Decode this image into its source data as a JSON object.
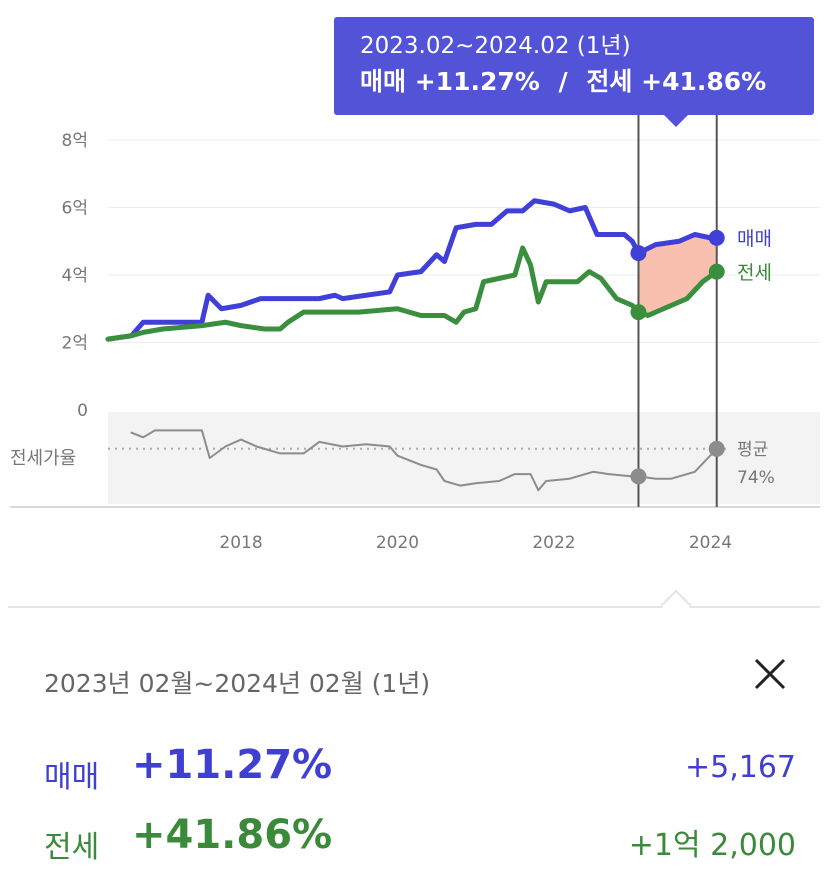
{
  "colors": {
    "sale": "#4040d8",
    "jeonse": "#3a8f3e",
    "ratio": "#8c8c8c",
    "highlight_fill": "#f9b9a6",
    "tooltip_bg": "#5353d8"
  },
  "tooltip": {
    "period": "2023.02~2024.02 (1년)",
    "sale_label": "매매",
    "sale_pct": "+11.27%",
    "separator": "/",
    "jeonse_label": "전세",
    "jeonse_pct": "+41.86%"
  },
  "panel": {
    "period": "2023년 02월~2024년 02월 (1년)",
    "close_icon": "close-icon",
    "sale": {
      "label": "매매",
      "pct": "+11.27%",
      "amount": "+5,167"
    },
    "jeonse": {
      "label": "전세",
      "pct": "+41.86%",
      "amount": "+1억 2,000"
    }
  },
  "chart_data": {
    "type": "line",
    "y_ticks": [
      "8억",
      "6억",
      "4억",
      "2억",
      "0"
    ],
    "ylim": [
      0,
      8
    ],
    "xlim": [
      2016.3,
      2025.4
    ],
    "x_ticks": [
      "2018",
      "2020",
      "2022",
      "2024"
    ],
    "x_tick_values": [
      2018,
      2020,
      2022,
      2024
    ],
    "ratio_label": "전세가율",
    "ratio_avg_label": "평균",
    "ratio_avg_value": "74%",
    "highlight_range": [
      2023.08,
      2024.08
    ],
    "series": [
      {
        "name": "매매",
        "key": "sale",
        "points": [
          [
            2016.3,
            2.1
          ],
          [
            2016.6,
            2.2
          ],
          [
            2016.75,
            2.6
          ],
          [
            2017.0,
            2.6
          ],
          [
            2017.5,
            2.6
          ],
          [
            2017.58,
            3.4
          ],
          [
            2017.75,
            3.0
          ],
          [
            2018.0,
            3.1
          ],
          [
            2018.25,
            3.3
          ],
          [
            2018.5,
            3.3
          ],
          [
            2019.0,
            3.3
          ],
          [
            2019.2,
            3.4
          ],
          [
            2019.3,
            3.3
          ],
          [
            2019.6,
            3.4
          ],
          [
            2019.9,
            3.5
          ],
          [
            2020.0,
            4.0
          ],
          [
            2020.3,
            4.1
          ],
          [
            2020.5,
            4.6
          ],
          [
            2020.6,
            4.4
          ],
          [
            2020.75,
            5.4
          ],
          [
            2021.0,
            5.5
          ],
          [
            2021.2,
            5.5
          ],
          [
            2021.4,
            5.9
          ],
          [
            2021.6,
            5.9
          ],
          [
            2021.75,
            6.2
          ],
          [
            2022.0,
            6.1
          ],
          [
            2022.2,
            5.9
          ],
          [
            2022.4,
            6.0
          ],
          [
            2022.55,
            5.2
          ],
          [
            2022.9,
            5.2
          ],
          [
            2023.0,
            5.0
          ],
          [
            2023.08,
            4.65
          ],
          [
            2023.3,
            4.9
          ],
          [
            2023.6,
            5.0
          ],
          [
            2023.8,
            5.2
          ],
          [
            2024.0,
            5.1
          ],
          [
            2024.08,
            5.1
          ]
        ]
      },
      {
        "name": "전세",
        "key": "jeonse",
        "points": [
          [
            2016.3,
            2.1
          ],
          [
            2016.6,
            2.2
          ],
          [
            2016.75,
            2.3
          ],
          [
            2017.0,
            2.4
          ],
          [
            2017.5,
            2.5
          ],
          [
            2017.8,
            2.6
          ],
          [
            2018.0,
            2.5
          ],
          [
            2018.3,
            2.4
          ],
          [
            2018.5,
            2.4
          ],
          [
            2018.6,
            2.6
          ],
          [
            2018.8,
            2.9
          ],
          [
            2019.0,
            2.9
          ],
          [
            2019.5,
            2.9
          ],
          [
            2020.0,
            3.0
          ],
          [
            2020.3,
            2.8
          ],
          [
            2020.6,
            2.8
          ],
          [
            2020.75,
            2.6
          ],
          [
            2020.85,
            2.9
          ],
          [
            2021.0,
            3.0
          ],
          [
            2021.1,
            3.8
          ],
          [
            2021.3,
            3.9
          ],
          [
            2021.5,
            4.0
          ],
          [
            2021.6,
            4.8
          ],
          [
            2021.7,
            4.3
          ],
          [
            2021.8,
            3.2
          ],
          [
            2021.9,
            3.8
          ],
          [
            2022.0,
            3.8
          ],
          [
            2022.3,
            3.8
          ],
          [
            2022.45,
            4.1
          ],
          [
            2022.6,
            3.9
          ],
          [
            2022.8,
            3.3
          ],
          [
            2023.0,
            3.1
          ],
          [
            2023.08,
            2.9
          ],
          [
            2023.2,
            2.8
          ],
          [
            2023.5,
            3.1
          ],
          [
            2023.7,
            3.3
          ],
          [
            2023.9,
            3.8
          ],
          [
            2024.08,
            4.1
          ]
        ]
      },
      {
        "name": "전세가율",
        "key": "ratio",
        "points": [
          [
            2016.6,
            81
          ],
          [
            2016.75,
            79
          ],
          [
            2016.9,
            82
          ],
          [
            2017.2,
            82
          ],
          [
            2017.5,
            82
          ],
          [
            2017.6,
            70
          ],
          [
            2017.8,
            75
          ],
          [
            2018.0,
            78
          ],
          [
            2018.2,
            75
          ],
          [
            2018.5,
            72
          ],
          [
            2018.8,
            72
          ],
          [
            2019.0,
            77
          ],
          [
            2019.3,
            75
          ],
          [
            2019.6,
            76
          ],
          [
            2019.9,
            75
          ],
          [
            2020.0,
            71
          ],
          [
            2020.3,
            67
          ],
          [
            2020.5,
            65
          ],
          [
            2020.6,
            60
          ],
          [
            2020.8,
            58
          ],
          [
            2021.0,
            59
          ],
          [
            2021.3,
            60
          ],
          [
            2021.5,
            63
          ],
          [
            2021.7,
            63
          ],
          [
            2021.8,
            56
          ],
          [
            2021.9,
            60
          ],
          [
            2022.2,
            61
          ],
          [
            2022.5,
            64
          ],
          [
            2022.7,
            63
          ],
          [
            2023.0,
            62
          ],
          [
            2023.08,
            62
          ],
          [
            2023.3,
            61
          ],
          [
            2023.5,
            61
          ],
          [
            2023.8,
            64
          ],
          [
            2024.08,
            74
          ]
        ]
      }
    ]
  }
}
